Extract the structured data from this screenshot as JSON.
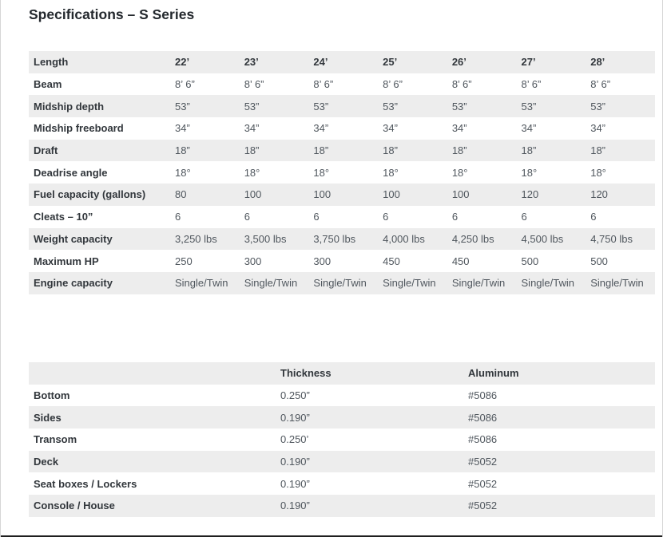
{
  "page": {
    "title": "Specifications – S Series"
  },
  "specs_table": {
    "header": [
      "Length",
      "22’",
      "23’",
      "24’",
      "25’",
      "26’",
      "27’",
      "28’"
    ],
    "rows": [
      [
        "Beam",
        "8’ 6”",
        "8’ 6”",
        "8’ 6”",
        "8’ 6”",
        "8’ 6”",
        "8’ 6”",
        "8’ 6”"
      ],
      [
        "Midship depth",
        "53”",
        "53”",
        "53”",
        "53”",
        "53”",
        "53”",
        "53”"
      ],
      [
        "Midship freeboard",
        "34”",
        "34”",
        "34”",
        "34”",
        "34”",
        "34”",
        "34”"
      ],
      [
        "Draft",
        "18”",
        "18”",
        "18”",
        "18”",
        "18”",
        "18”",
        "18”"
      ],
      [
        "Deadrise angle",
        "18°",
        "18°",
        "18°",
        "18°",
        "18°",
        "18°",
        "18°"
      ],
      [
        "Fuel capacity (gallons)",
        "80",
        "100",
        "100",
        "100",
        "100",
        "120",
        "120"
      ],
      [
        "Cleats – 10”",
        "6",
        "6",
        "6",
        "6",
        "6",
        "6",
        "6"
      ],
      [
        "Weight capacity",
        "3,250 lbs",
        "3,500 lbs",
        "3,750 lbs",
        "4,000 lbs",
        "4,250 lbs",
        "4,500 lbs",
        "4,750 lbs"
      ],
      [
        "Maximum HP",
        "250",
        "300",
        "300",
        "450",
        "450",
        "500",
        "500"
      ],
      [
        "Engine capacity",
        "Single/Twin",
        "Single/Twin",
        "Single/Twin",
        "Single/Twin",
        "Single/Twin",
        "Single/Twin",
        "Single/Twin"
      ]
    ]
  },
  "construction_table": {
    "header": [
      "",
      "Thickness",
      "Aluminum"
    ],
    "rows": [
      [
        "Bottom",
        "0.250”",
        "#5086"
      ],
      [
        "Sides",
        "0.190”",
        "#5086"
      ],
      [
        "Transom",
        "0.250’",
        "#5086"
      ],
      [
        "Deck",
        "0.190”",
        "#5052"
      ],
      [
        "Seat boxes / Lockers",
        "0.190”",
        "#5052"
      ],
      [
        "Console / House",
        "0.190”",
        "#5052"
      ]
    ]
  },
  "colors": {
    "row_stripe": "#ededed",
    "title_text": "#23282d",
    "label_text": "#32373c",
    "value_text": "#50575e",
    "bottom_rule": "#1f1f1f",
    "side_border": "#d6d6d6"
  }
}
